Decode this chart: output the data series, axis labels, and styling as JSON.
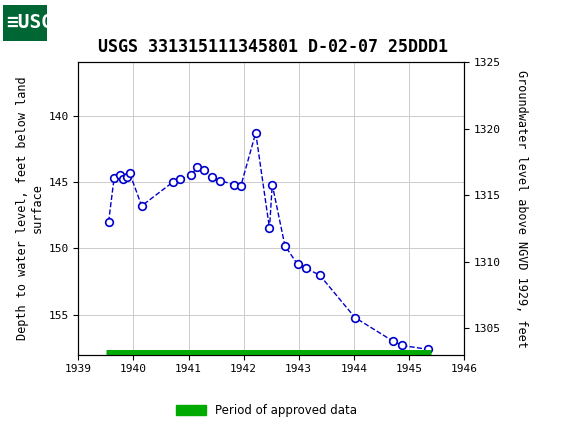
{
  "title": "USGS 331315111345801 D-02-07 25DDD1",
  "ylabel_left": "Depth to water level, feet below land\nsurface",
  "ylabel_right": "Groundwater level above NGVD 1929, feet",
  "xlim": [
    1939,
    1946
  ],
  "ylim_left_bottom": 158,
  "ylim_left_top": 136,
  "ylim_right_bottom": 1303,
  "ylim_right_top": 1325,
  "xticks": [
    1939,
    1940,
    1941,
    1942,
    1943,
    1944,
    1945,
    1946
  ],
  "yticks_left": [
    140,
    145,
    150,
    155
  ],
  "yticks_right": [
    1305,
    1310,
    1315,
    1320,
    1325
  ],
  "x_data": [
    1939.55,
    1939.65,
    1939.75,
    1939.82,
    1939.88,
    1939.93,
    1940.15,
    1940.72,
    1940.85,
    1941.05,
    1941.15,
    1941.28,
    1941.42,
    1941.58,
    1941.82,
    1941.95,
    1942.22,
    1942.47,
    1942.52,
    1942.75,
    1942.98,
    1943.13,
    1943.38,
    1944.02,
    1944.72,
    1944.88,
    1945.35
  ],
  "y_data": [
    148.0,
    144.7,
    144.5,
    144.8,
    144.6,
    144.3,
    146.8,
    145.0,
    144.8,
    144.5,
    143.9,
    144.1,
    144.6,
    144.9,
    145.2,
    145.3,
    141.3,
    148.5,
    145.2,
    149.8,
    151.2,
    151.5,
    152.0,
    155.2,
    157.0,
    157.3,
    157.6
  ],
  "line_color": "#0000CC",
  "marker_color": "#0000CC",
  "marker_face": "#FFFFFF",
  "grid_color": "#CCCCCC",
  "bg_color": "#FFFFFF",
  "header_bg": "#006633",
  "bar_color": "#00AA00",
  "bar_x_start": 1939.5,
  "bar_x_end": 1945.4,
  "legend_label": "Period of approved data",
  "title_fontsize": 12,
  "tick_fontsize": 8,
  "label_fontsize": 8.5
}
